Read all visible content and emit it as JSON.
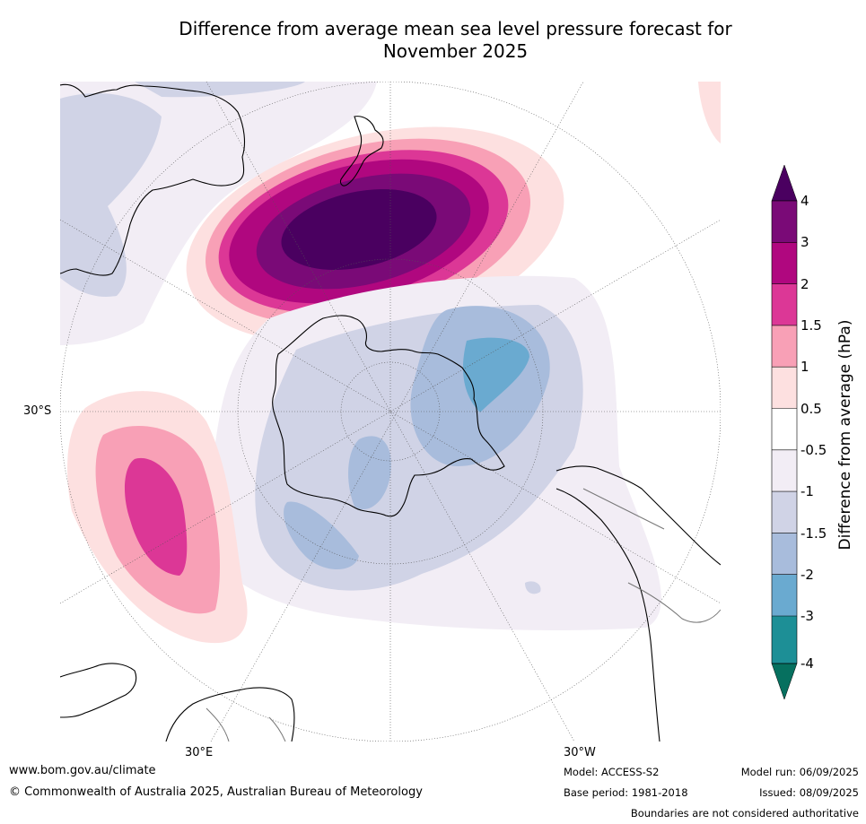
{
  "title_line1": "Difference from average mean sea level pressure forecast for",
  "title_line2": "November 2025",
  "graticule_labels": {
    "lat": "30°S",
    "lon_east": "30°E",
    "lon_west": "30°W"
  },
  "colorbar": {
    "title": "Difference from average (hPa)",
    "ticks": [
      "4",
      "3",
      "2",
      "1.5",
      "1",
      "0.5",
      "-0.5",
      "-1",
      "-1.5",
      "-2",
      "-3",
      "-4"
    ],
    "colors": {
      "gt4": "#4a0060",
      "3_4": "#7a0a77",
      "2_3": "#b0077f",
      "1.5_2": "#dc3796",
      "1_1.5": "#f8a0b6",
      "0.5_1": "#fde0e0",
      "-0.5_0.5": "#ffffff",
      "-1_-0.5": "#f2edf5",
      "-1.5_-1": "#d0d3e6",
      "-2_-1.5": "#a8bcdc",
      "-3_-2": "#6aaad0",
      "-4_-3": "#1d8f96",
      "lt-4": "#06705f"
    }
  },
  "footer": {
    "website": "www.bom.gov.au/climate",
    "copyright": "© Commonwealth of Australia 2025, Australian Bureau of Meteorology",
    "model": "Model: ACCESS-S2",
    "base_period": "Base period: 1981-2018",
    "model_run": "Model run: 06/09/2025",
    "issued": "Issued: 08/09/2025",
    "disclaimer": "Boundaries are not considered authoritative"
  }
}
